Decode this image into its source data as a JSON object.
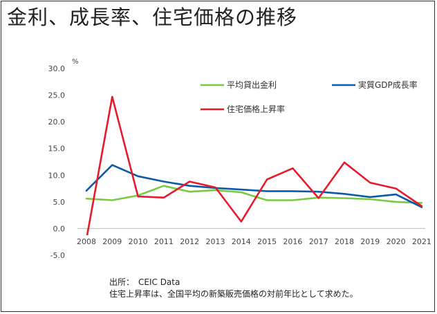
{
  "chart_data": {
    "type": "line",
    "title": "金利、成長率、住宅価格の推移",
    "ylabel": "%",
    "xlabel": "",
    "categories": [
      "2008",
      "2009",
      "2010",
      "2011",
      "2012",
      "2013",
      "2014",
      "2015",
      "2016",
      "2017",
      "2018",
      "2019",
      "2020",
      "2021"
    ],
    "ylim": [
      -5.0,
      30.0
    ],
    "yticks": [
      "30.0",
      "25.0",
      "20.0",
      "15.0",
      "10.0",
      "5.0",
      "0.0",
      "-5.0"
    ],
    "grid": false,
    "legend_position": "top",
    "series": [
      {
        "name": "平均貸出金利",
        "color": "#7ac943",
        "values": [
          5.6,
          5.3,
          6.2,
          8.0,
          6.9,
          7.2,
          6.8,
          5.3,
          5.3,
          5.8,
          5.7,
          5.5,
          5.0,
          4.8
        ]
      },
      {
        "name": "実質GDP成長率",
        "color": "#0b5aa8",
        "values": [
          7.1,
          11.9,
          9.8,
          8.8,
          8.0,
          7.6,
          7.3,
          7.0,
          7.0,
          6.9,
          6.5,
          5.9,
          6.4,
          4.0
        ]
      },
      {
        "name": "住宅価格上昇率",
        "color": "#e8192b",
        "values": [
          -2.0,
          24.7,
          6.0,
          5.8,
          8.8,
          7.7,
          1.3,
          9.2,
          11.3,
          5.7,
          12.4,
          8.6,
          7.5,
          4.2
        ]
      }
    ]
  },
  "notes": {
    "source": "出所：　CEIC Data",
    "remark": "住宅上昇率は、全国平均の新築販売価格の対前年比として求めた。"
  }
}
